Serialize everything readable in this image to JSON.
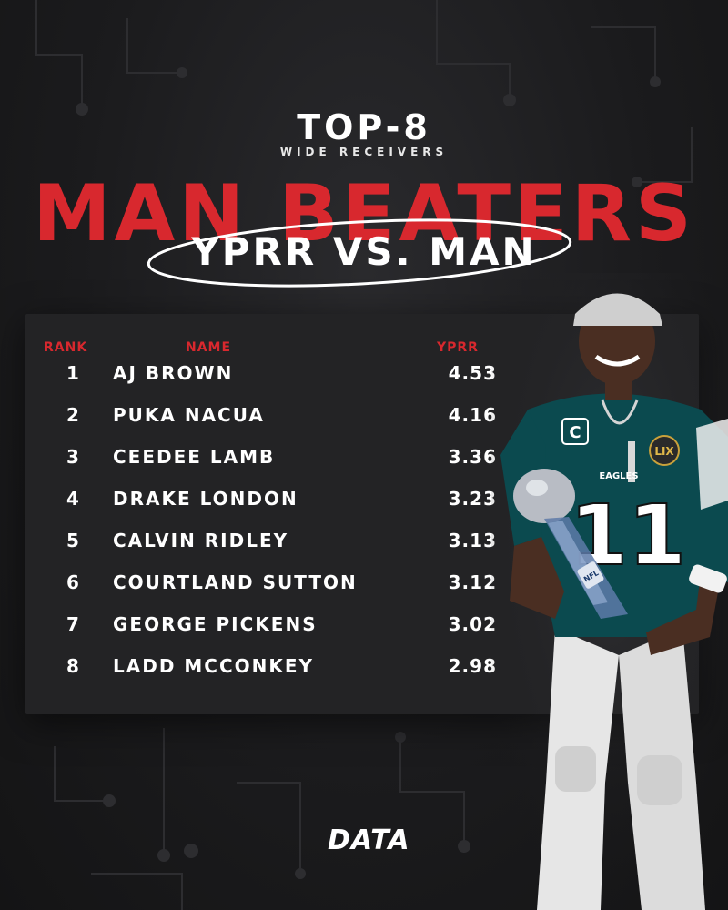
{
  "header": {
    "top": "TOP-8",
    "sub": "WIDE RECEIVERS",
    "title": "MAN BEATERS",
    "subtitle": "YPRR VS. MAN"
  },
  "table": {
    "columns": {
      "rank": "RANK",
      "name": "NAME",
      "value": "YPRR"
    },
    "rows": [
      {
        "rank": "1",
        "name": "AJ BROWN",
        "value": "4.53"
      },
      {
        "rank": "2",
        "name": "PUKA NACUA",
        "value": "4.16"
      },
      {
        "rank": "3",
        "name": "CEEDEE LAMB",
        "value": "3.36"
      },
      {
        "rank": "4",
        "name": "DRAKE LONDON",
        "value": "3.23"
      },
      {
        "rank": "5",
        "name": "CALVIN RIDLEY",
        "value": "3.13"
      },
      {
        "rank": "6",
        "name": "COURTLAND SUTTON",
        "value": "3.12"
      },
      {
        "rank": "7",
        "name": "GEORGE PICKENS",
        "value": "3.02"
      },
      {
        "rank": "8",
        "name": "LADD MCCONKEY",
        "value": "2.98"
      }
    ]
  },
  "player": {
    "jersey_number": "11",
    "jersey_text": "EAGLES",
    "captain_patch": "C",
    "sb_patch": "LIX",
    "trophy_label": "NFL"
  },
  "branding": {
    "logo": "DATA"
  },
  "colors": {
    "accent": "#d8282e",
    "background": "#1c1c1e",
    "panel": "#232325",
    "jersey": "#0b4a4f"
  }
}
